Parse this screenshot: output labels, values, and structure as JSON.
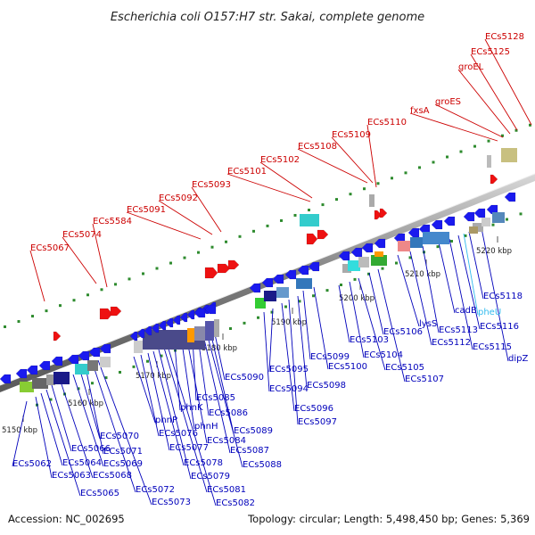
{
  "title": "Escherichia coli O157:H7 str. Sakai, complete genome",
  "footer": {
    "accession": "Accession: NC_002695",
    "summary": "Topology: circular; Length: 5,498,450 bp; Genes: 5,369"
  },
  "colors": {
    "forward_gene": "#1a1aee",
    "reverse_gene": "#ee1111",
    "red_label": "#cc0000",
    "blue_label": "#0000bb",
    "highlight_label": "#33bbee",
    "dotted_track": "#2e8b2e"
  },
  "kbp_ticks": [
    "5150 kbp",
    "5160 kbp",
    "5170 kbp",
    "5180 kbp",
    "5190 kbp",
    "5200 kbp",
    "5210 kbp",
    "5220 kbp"
  ],
  "red_labels": [
    "ECs5067",
    "ECs5074",
    "ECs5584",
    "ECs5091",
    "ECs5092",
    "ECs5093",
    "ECs5101",
    "ECs5102",
    "ECs5108",
    "ECs5109",
    "ECs5110",
    "fxsA",
    "groES",
    "groEL",
    "ECs5125",
    "ECs5128"
  ],
  "blue_labels": [
    "ECs5062",
    "ECs5063",
    "ECs5064",
    "ECs5065",
    "ECs5066",
    "ECs5068",
    "ECs5069",
    "ECs5070",
    "ECs5071",
    "ECs5072",
    "ECs5073",
    "phnP",
    "ECs5076",
    "ECs5077",
    "ECs5078",
    "ECs5079",
    "ECs5081",
    "ECs5082",
    "phnK",
    "phnH",
    "ECs5084",
    "ECs5085",
    "ECs5086",
    "ECs5087",
    "ECs5088",
    "ECs5089",
    "ECs5090",
    "ECs5094",
    "ECs5095",
    "ECs5096",
    "ECs5097",
    "ECs5098",
    "ECs5099",
    "ECs5100",
    "ECs5103",
    "ECs5104",
    "ECs5105",
    "ECs5106",
    "ECs5107",
    "lysS",
    "ECs5112",
    "ECs5113",
    "cadB",
    "ECs5115",
    "ECs5116",
    "ECs5118",
    "dipZ"
  ],
  "highlight_labels": [
    "pheU"
  ]
}
